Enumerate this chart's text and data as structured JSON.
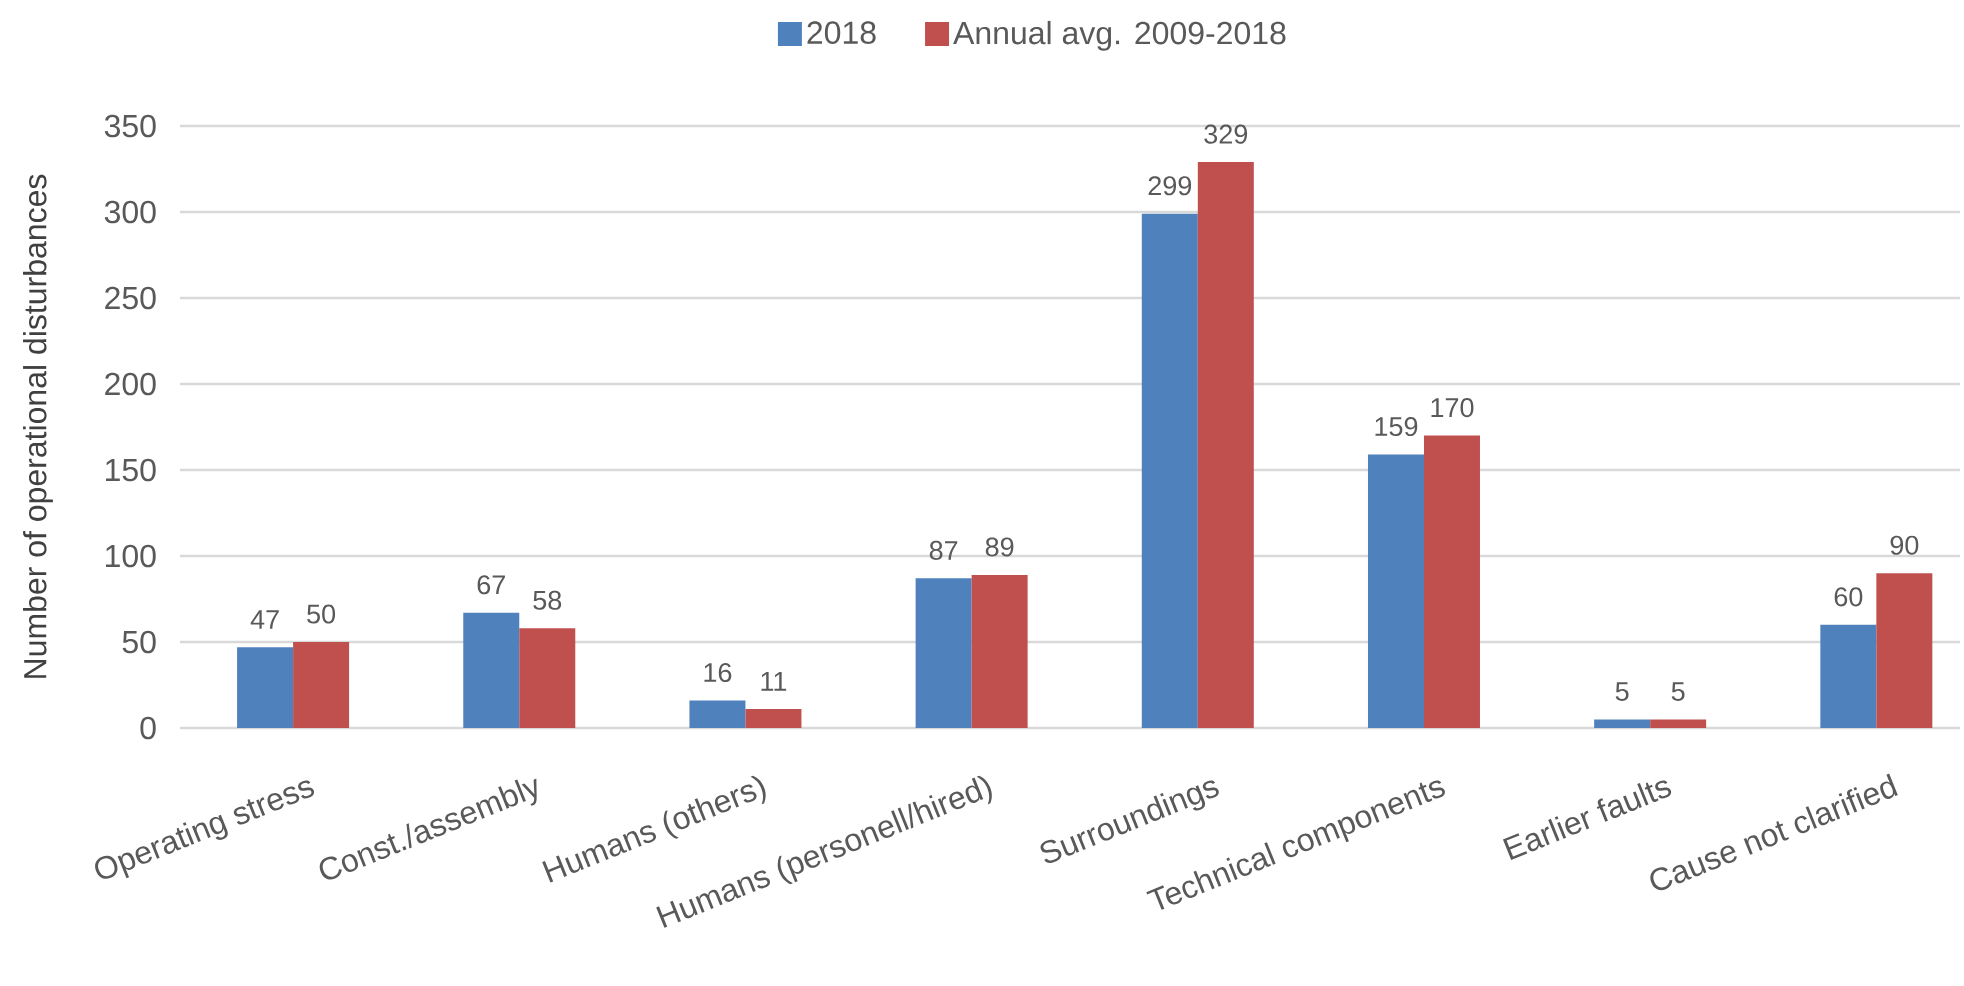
{
  "chart_data": {
    "type": "bar",
    "ylabel": "Number of operational disturbances",
    "categories": [
      "Operating stress",
      "Const./assembly",
      "Humans (others)",
      "Humans (personell/hired)",
      "Surroundings",
      "Technical components",
      "Earlier faults",
      "Cause not clarified"
    ],
    "series": [
      {
        "name": "2018",
        "color": "#4f81bd",
        "values": [
          47,
          67,
          16,
          87,
          299,
          159,
          5,
          60
        ]
      },
      {
        "name": "Annual avg. 2009-2018",
        "color": "#c0504d",
        "values": [
          50,
          58,
          11,
          89,
          329,
          170,
          5,
          90
        ]
      }
    ],
    "ylim": [
      0,
      350
    ],
    "yticks": [
      0,
      50,
      100,
      150,
      200,
      250,
      300,
      350
    ],
    "grid": "y",
    "legend": "top",
    "data_labels": true
  }
}
